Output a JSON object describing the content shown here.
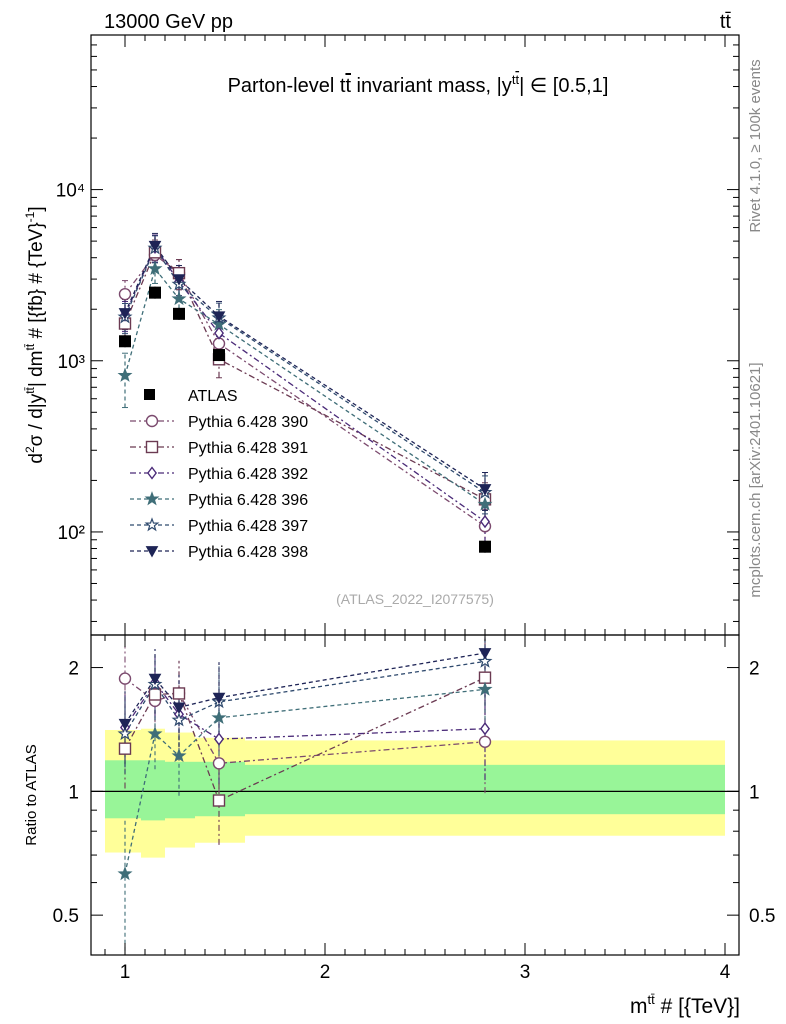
{
  "header": {
    "left": "13000 GeV pp",
    "right": "tt̄"
  },
  "side_labels": {
    "rivet": "Rivet 4.1.0, ≥ 100k events",
    "mcplots": "mcplots.cern.ch [arXiv:2401.10621]"
  },
  "chart_data": [
    {
      "type": "scatter",
      "panel": "main",
      "title": "Parton-level tt̄ invariant mass, |y^{tt̄}| ∈ [0.5,1]",
      "ylabel": "d²σ / d|y^{tt̄}| dm^{tt̄} # [{fb} # {TeV}⁻¹]",
      "yscale": "log",
      "ylim": [
        25,
        80000
      ],
      "xlim": [
        0.83,
        4.07
      ],
      "y_ticks": [
        {
          "value": 100,
          "label": "10²"
        },
        {
          "value": 1000,
          "label": "10³"
        },
        {
          "value": 10000,
          "label": "10⁴"
        }
      ],
      "watermark": "(ATLAS_2022_I2077575)",
      "reference": {
        "name": "ATLAS",
        "x": [
          1.0,
          1.15,
          1.27,
          1.47,
          2.8
        ],
        "y": [
          1300,
          2500,
          1880,
          1080,
          82
        ]
      },
      "series": [
        {
          "name": "Pythia 6.428 390",
          "marker": "circle-open",
          "color": "#7b4a6e",
          "dash": "6,3,2,3",
          "x": [
            1.0,
            1.15,
            1.27,
            1.47,
            2.8
          ],
          "y": [
            2450,
            4150,
            3250,
            1260,
            108
          ],
          "err": [
            0.2,
            0.18,
            0.2,
            0.22,
            0.25
          ]
        },
        {
          "name": "Pythia 6.428 391",
          "marker": "square-open",
          "color": "#6b3a52",
          "dash": "6,3,2,3",
          "x": [
            1.0,
            1.15,
            1.27,
            1.47,
            2.8
          ],
          "y": [
            1650,
            4300,
            3250,
            1020,
            155
          ],
          "err": [
            0.2,
            0.18,
            0.2,
            0.22,
            0.25
          ]
        },
        {
          "name": "Pythia 6.428 392",
          "marker": "diamond-open",
          "color": "#4a2a78",
          "dash": "6,3,2,3",
          "x": [
            1.0,
            1.15,
            1.27,
            1.47,
            2.8
          ],
          "y": [
            1850,
            4600,
            2900,
            1450,
            115
          ],
          "err": [
            0.2,
            0.18,
            0.2,
            0.22,
            0.25
          ]
        },
        {
          "name": "Pythia 6.428 396",
          "marker": "star-filled",
          "color": "#3f6e78",
          "dash": "4,3",
          "x": [
            1.0,
            1.15,
            1.27,
            1.47,
            2.8
          ],
          "y": [
            820,
            3450,
            2300,
            1630,
            145
          ],
          "err": [
            0.35,
            0.18,
            0.2,
            0.22,
            0.25
          ]
        },
        {
          "name": "Pythia 6.428 397",
          "marker": "star-open",
          "color": "#2f4a6e",
          "dash": "4,3",
          "x": [
            1.0,
            1.15,
            1.27,
            1.47,
            2.8
          ],
          "y": [
            1800,
            4550,
            2800,
            1780,
            170
          ],
          "err": [
            0.2,
            0.18,
            0.2,
            0.22,
            0.25
          ]
        },
        {
          "name": "Pythia 6.428 398",
          "marker": "triangle-down-filled",
          "color": "#1e2456",
          "dash": "4,3",
          "x": [
            1.0,
            1.15,
            1.27,
            1.47,
            2.8
          ],
          "y": [
            1900,
            4700,
            3000,
            1820,
            178
          ],
          "err": [
            0.2,
            0.18,
            0.2,
            0.22,
            0.25
          ]
        }
      ]
    },
    {
      "type": "scatter",
      "panel": "ratio",
      "ylabel": "Ratio to ATLAS",
      "xlabel": "m^{tt̄} # [{TeV}]",
      "yscale": "log",
      "ylim": [
        0.4,
        2.4
      ],
      "xlim": [
        0.83,
        4.07
      ],
      "y_ticks": [
        {
          "value": 0.5,
          "label": "0.5"
        },
        {
          "value": 1,
          "label": "1"
        },
        {
          "value": 2,
          "label": "2"
        }
      ],
      "x_ticks": [
        {
          "value": 1,
          "label": "1"
        },
        {
          "value": 2,
          "label": "2"
        },
        {
          "value": 3,
          "label": "3"
        },
        {
          "value": 4,
          "label": "4"
        }
      ],
      "uncertainty_bands": {
        "bin_edges": [
          0.9,
          1.08,
          1.2,
          1.35,
          1.6,
          4.0
        ],
        "inner": [
          [
            0.86,
            1.19
          ],
          [
            0.85,
            1.19
          ],
          [
            0.86,
            1.18
          ],
          [
            0.87,
            1.18
          ],
          [
            0.88,
            1.16
          ]
        ],
        "outer": [
          [
            0.71,
            1.41
          ],
          [
            0.69,
            1.42
          ],
          [
            0.73,
            1.39
          ],
          [
            0.75,
            1.35
          ],
          [
            0.78,
            1.33
          ]
        ],
        "inner_color": "#98f598",
        "outer_color": "#ffff99"
      },
      "series": [
        {
          "name": "Pythia 6.428 390",
          "x": [
            1.0,
            1.15,
            1.27,
            1.47,
            2.8
          ],
          "y": [
            1.88,
            1.66,
            1.73,
            1.17,
            1.32
          ]
        },
        {
          "name": "Pythia 6.428 391",
          "x": [
            1.0,
            1.15,
            1.27,
            1.47,
            2.8
          ],
          "y": [
            1.27,
            1.72,
            1.73,
            0.95,
            1.89
          ]
        },
        {
          "name": "Pythia 6.428 392",
          "x": [
            1.0,
            1.15,
            1.27,
            1.47,
            2.8
          ],
          "y": [
            1.43,
            1.84,
            1.54,
            1.34,
            1.42
          ]
        },
        {
          "name": "Pythia 6.428 396",
          "x": [
            1.0,
            1.15,
            1.27,
            1.47,
            2.8
          ],
          "y": [
            0.63,
            1.38,
            1.22,
            1.51,
            1.77
          ]
        },
        {
          "name": "Pythia 6.428 397",
          "x": [
            1.0,
            1.15,
            1.27,
            1.47,
            2.8
          ],
          "y": [
            1.38,
            1.82,
            1.49,
            1.65,
            2.07
          ]
        },
        {
          "name": "Pythia 6.428 398",
          "x": [
            1.0,
            1.15,
            1.27,
            1.47,
            2.8
          ],
          "y": [
            1.46,
            1.88,
            1.6,
            1.69,
            2.17
          ]
        }
      ]
    }
  ]
}
